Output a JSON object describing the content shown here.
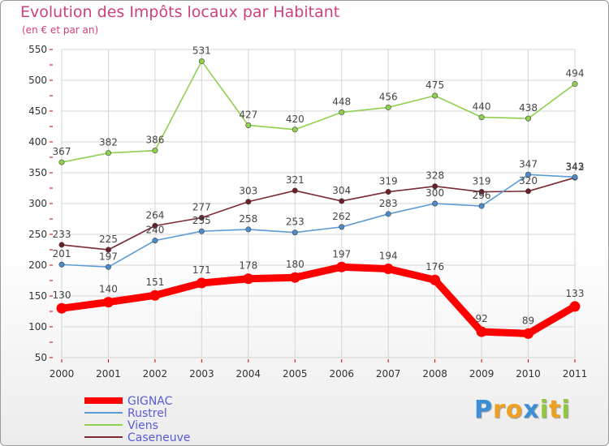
{
  "chart_data": {
    "type": "line",
    "title": "Evolution des Impôts locaux par Habitant",
    "subtitle": "(en € et par an)",
    "xlabel": "",
    "ylabel": "",
    "x": [
      "2000",
      "2001",
      "2002",
      "2003",
      "2004",
      "2005",
      "2006",
      "2007",
      "2008",
      "2009",
      "2010",
      "2011"
    ],
    "ylim": [
      50,
      550
    ],
    "yticks": [
      50,
      100,
      150,
      200,
      250,
      300,
      350,
      400,
      450,
      500,
      550
    ],
    "grid": true,
    "legend_position": "bottom-left",
    "series": [
      {
        "name": "Viens",
        "color": "#8fd14f",
        "dot": "#8fd14f",
        "values": [
          367,
          382,
          386,
          531,
          427,
          420,
          448,
          456,
          475,
          440,
          438,
          494
        ]
      },
      {
        "name": "Caseneuve",
        "color": "#7a2a30",
        "dot": "#6a2026",
        "values": [
          233,
          225,
          264,
          277,
          303,
          321,
          304,
          319,
          328,
          319,
          320,
          342
        ]
      },
      {
        "name": "Rustrel",
        "color": "#5b9bd5",
        "dot": "#4a8ccc",
        "values": [
          201,
          197,
          240,
          255,
          258,
          253,
          262,
          283,
          300,
          296,
          347,
          343
        ]
      },
      {
        "name": "GIGNAC",
        "color": "#ff0000",
        "dot": "#ff0000",
        "bold": true,
        "values": [
          130,
          140,
          151,
          171,
          178,
          180,
          197,
          194,
          176,
          92,
          89,
          133
        ]
      }
    ]
  },
  "legend": [
    {
      "name": "GIGNAC",
      "color": "#ff0000"
    },
    {
      "name": "Rustrel",
      "color": "#5b9bd5"
    },
    {
      "name": "Viens",
      "color": "#8fd14f"
    },
    {
      "name": "Caseneuve",
      "color": "#7a2a30"
    }
  ],
  "brand": {
    "letters": [
      "P",
      "r",
      "o",
      "x",
      "i",
      "t",
      "i"
    ],
    "colors": [
      "#3a8fd6",
      "#f0a020",
      "#f0a020",
      "#3a8fd6",
      "#8fc93a",
      "#f0a020",
      "#8fc93a"
    ]
  },
  "colors": {
    "title": "#cf3f7e",
    "grid": "#d4d4d4",
    "axis_ticks": "#cc0000"
  }
}
